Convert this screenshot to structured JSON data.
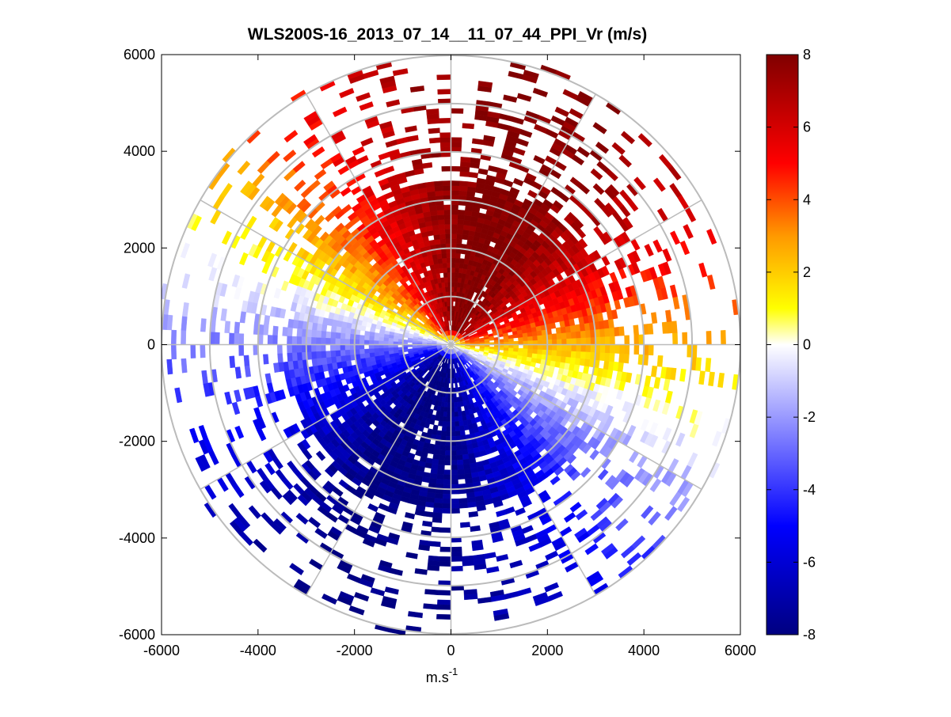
{
  "chart_data": {
    "type": "heatmap",
    "subtype": "polar-ppi",
    "title": "WLS200S-16_2013_07_14__11_07_44_PPI_Vr (m/s)",
    "xlabel": "m.s",
    "xlabel_superscript": "-1",
    "ylabel": "",
    "xlim": [
      -6000,
      6000
    ],
    "ylim": [
      -6000,
      6000
    ],
    "xticks": [
      -6000,
      -4000,
      -2000,
      0,
      2000,
      4000,
      6000
    ],
    "yticks": [
      -6000,
      -4000,
      -2000,
      0,
      2000,
      4000,
      6000
    ],
    "xtick_labels": [
      "-6000",
      "-4000",
      "-2000",
      "0",
      "2000",
      "4000",
      "6000"
    ],
    "ytick_labels": [
      "-6000",
      "-4000",
      "-2000",
      "0",
      "2000",
      "4000",
      "6000"
    ],
    "polar_grid": {
      "ring_radii": [
        1000,
        2000,
        3000,
        4000,
        5000,
        6000
      ],
      "spoke_angles_deg": [
        0,
        30,
        60,
        90,
        120,
        150,
        180,
        210,
        240,
        270,
        300,
        330
      ]
    },
    "field": {
      "description": "radial velocity, sinusoidal with azimuth",
      "azimuth_step_deg": 3,
      "range_step_m": 100,
      "range_min_m": 100,
      "max_range_m": 6100,
      "core_range_m": 3400,
      "peak_velocity_ms": 8,
      "positive_direction_deg": 70,
      "negative_direction_deg": 250
    },
    "colorbar": {
      "min": -8,
      "max": 8,
      "ticks": [
        -8,
        -6,
        -4,
        -2,
        0,
        2,
        4,
        6,
        8
      ],
      "tick_labels": [
        "-8",
        "-6",
        "-4",
        "-2",
        "0",
        "2",
        "4",
        "6",
        "8"
      ],
      "colormap_stops": [
        {
          "value": -8,
          "color": "#000080"
        },
        {
          "value": -5,
          "color": "#0000ff"
        },
        {
          "value": 0,
          "color": "#ffffff"
        },
        {
          "value": 1,
          "color": "#ffff00"
        },
        {
          "value": 3,
          "color": "#ff9900"
        },
        {
          "value": 5,
          "color": "#ff0000"
        },
        {
          "value": 8,
          "color": "#800000"
        }
      ]
    }
  }
}
